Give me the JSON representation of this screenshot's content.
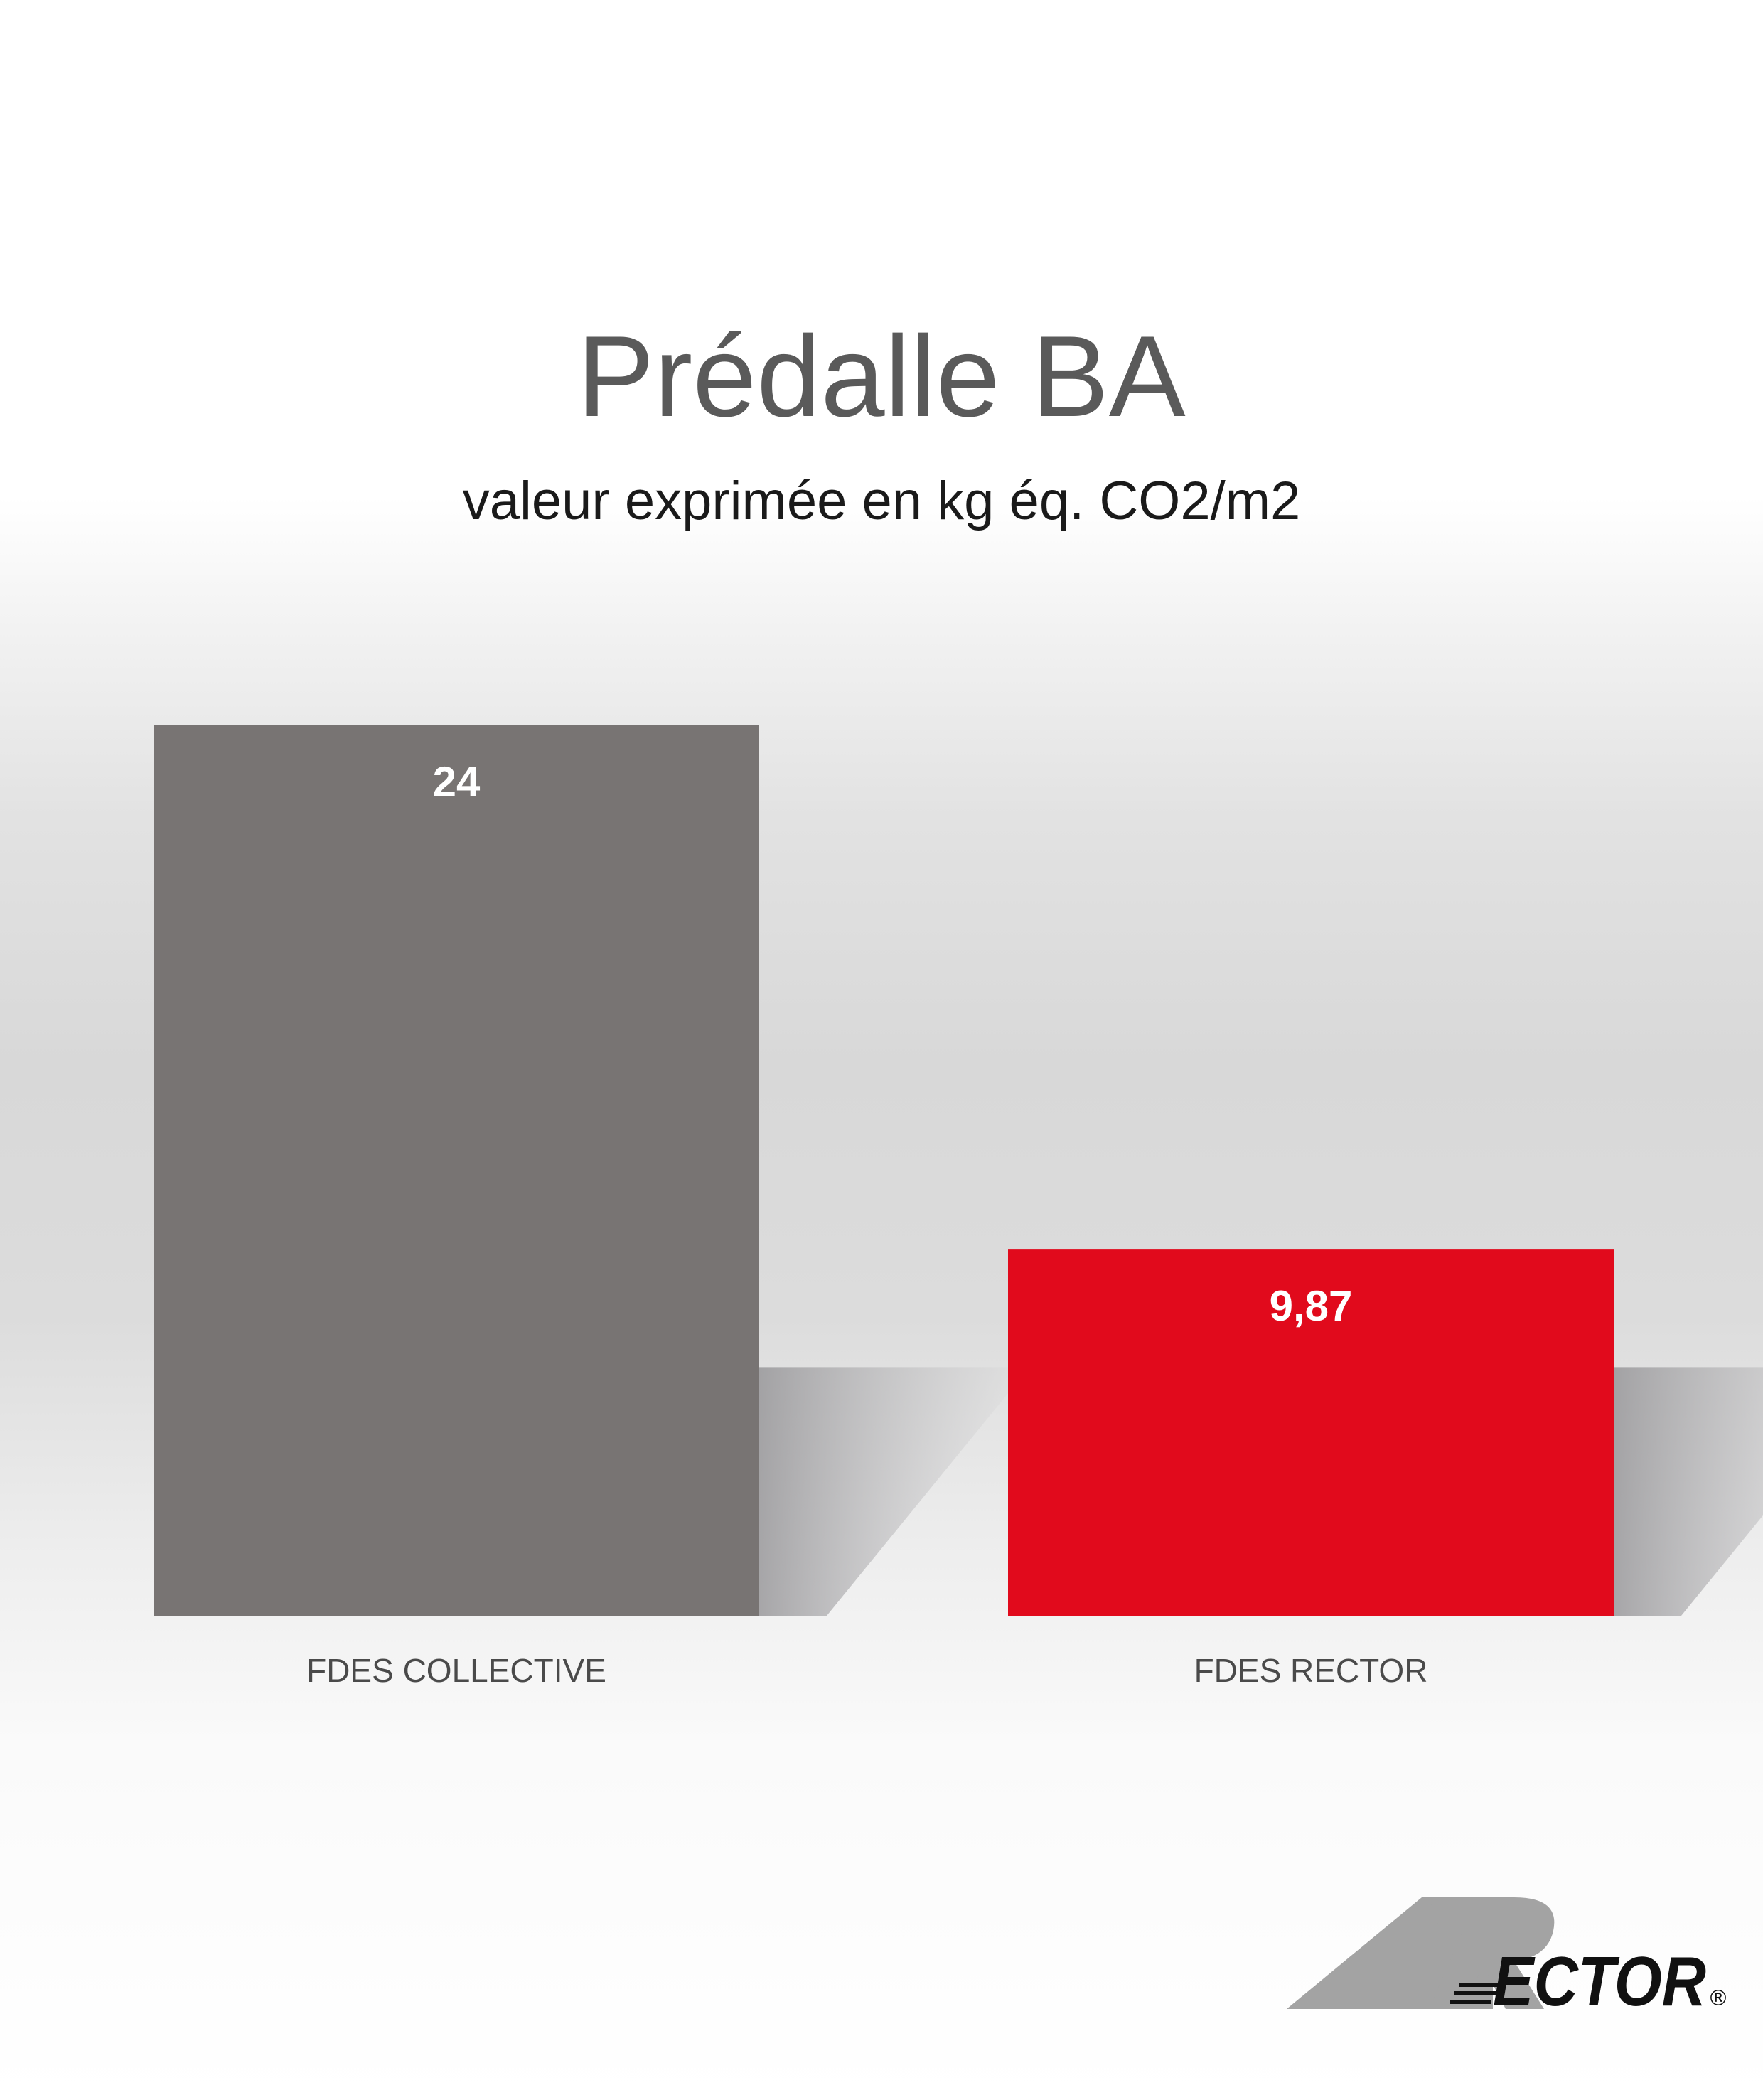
{
  "chart_data": {
    "type": "bar",
    "title": "Prédalle BA",
    "subtitle": "valeur exprimée en kg éq. CO2/m2",
    "categories": [
      "FDES COLLECTIVE",
      "FDES RECTOR"
    ],
    "values": [
      24,
      9.87
    ],
    "value_labels": [
      "24",
      "9,87"
    ],
    "colors": [
      "#787473",
      "#e10a1c"
    ],
    "ylim": [
      0,
      24
    ],
    "grid": false,
    "legend": "none"
  },
  "logo": {
    "text": "RECTOR",
    "mark": "®",
    "color": "#a3a3a3"
  }
}
